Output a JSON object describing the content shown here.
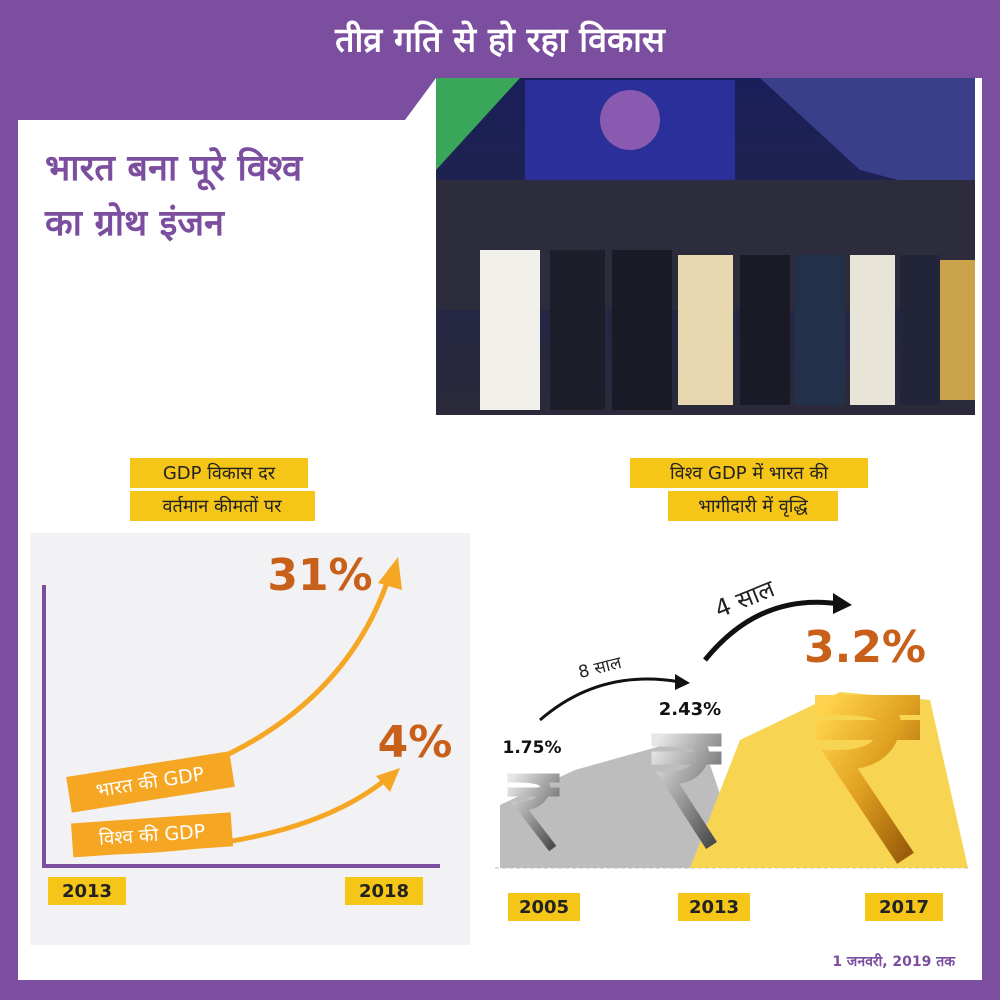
{
  "header": {
    "title": "तीव्र गति से हो रहा विकास"
  },
  "headline": {
    "lines": [
      "भारत बना पूरे विश्व",
      "का ग्रोथ इंजन"
    ]
  },
  "gdp_growth": {
    "label_lines": [
      "GDP विकास दर",
      "वर्तमान कीमतों पर"
    ],
    "india": {
      "label": "भारत की GDP",
      "value": "31%"
    },
    "world": {
      "label": "विश्व की GDP",
      "value": "4%"
    },
    "years": [
      "2013",
      "2018"
    ]
  },
  "india_share": {
    "label_lines": [
      "विश्व GDP में भारत की",
      "भागीदारी में वृद्धि"
    ],
    "intervals": [
      "8 साल",
      "4 साल"
    ],
    "points": [
      {
        "year": "2005",
        "value": "1.75%"
      },
      {
        "year": "2013",
        "value": "2.43%"
      },
      {
        "year": "2017",
        "value": "3.2%"
      }
    ]
  },
  "footer": {
    "note": "1 जनवरी, 2019 तक"
  }
}
